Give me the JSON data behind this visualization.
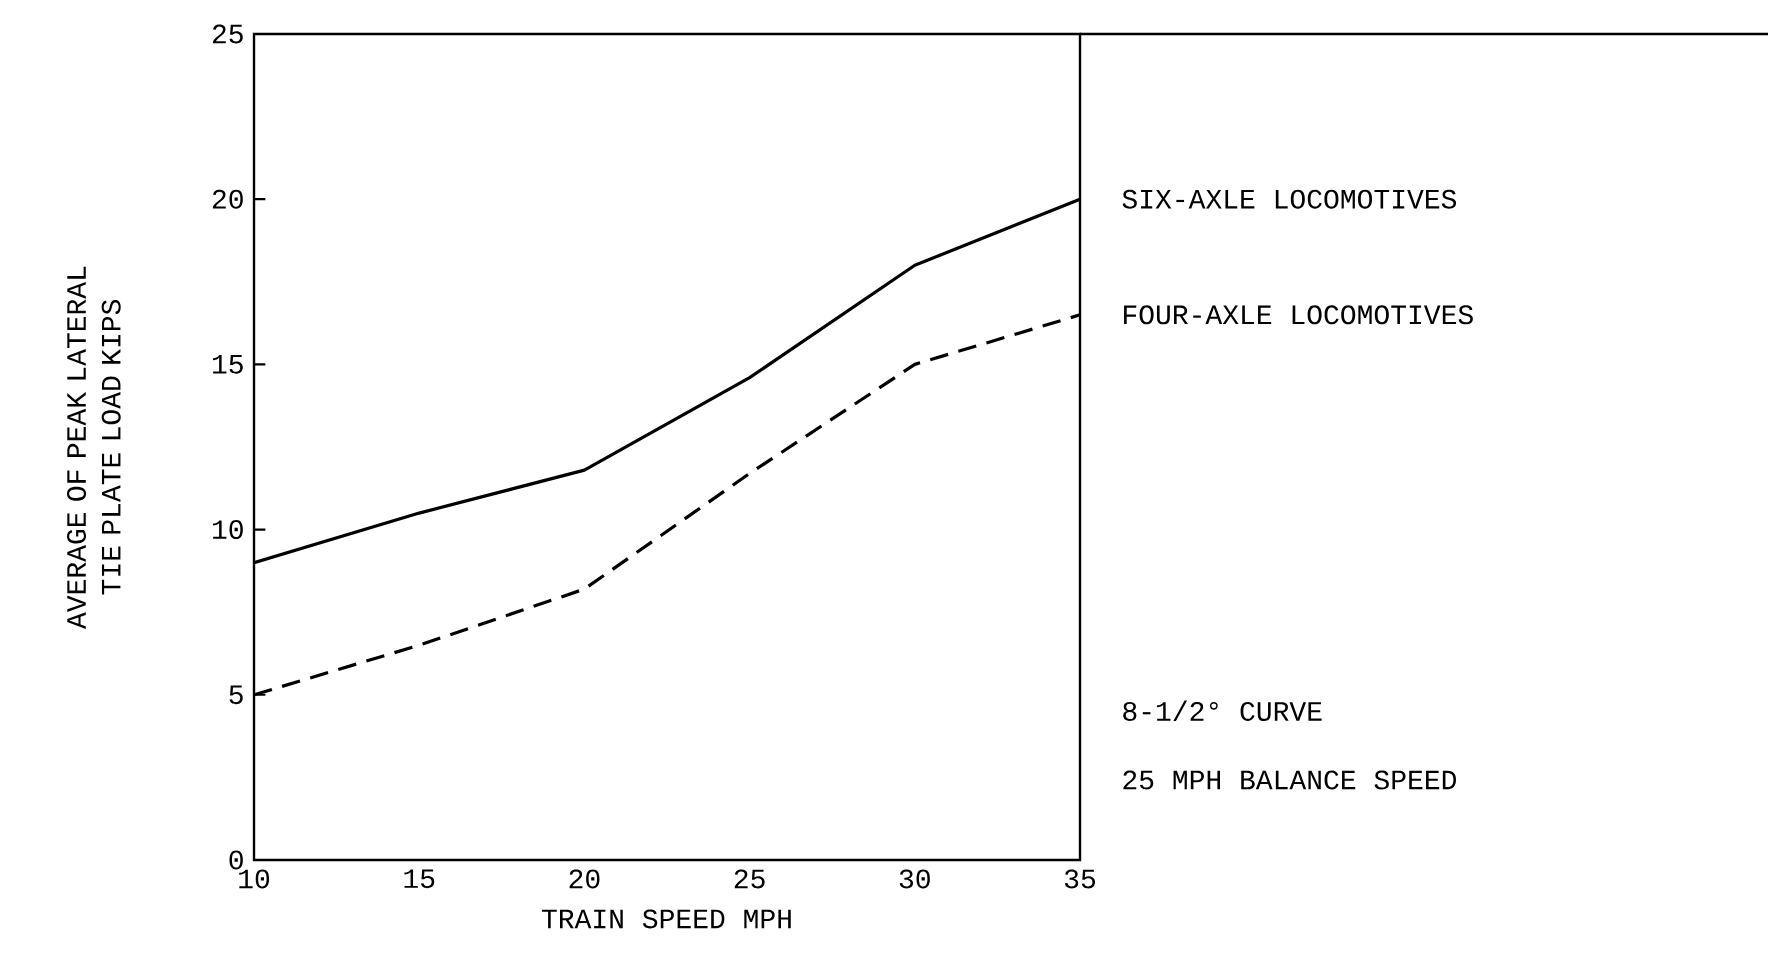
{
  "chart_data": {
    "type": "line",
    "xlabel": "TRAIN SPEED MPH",
    "ylabel": "AVERAGE OF PEAK LATERAL TIE PLATE LOAD KIPS",
    "x": [
      10,
      15,
      20,
      25,
      30,
      35
    ],
    "series": [
      {
        "name": "SIX-AXLE LOCOMOTIVES",
        "color": "#000000",
        "line_style": "solid",
        "values": [
          9,
          10.5,
          11.8,
          14.6,
          18,
          20
        ]
      },
      {
        "name": "FOUR-AXLE LOCOMOTIVES",
        "color": "#000000",
        "line_style": "dashed",
        "values": [
          5,
          6.5,
          8.2,
          11.7,
          15,
          16.5
        ]
      }
    ],
    "annotations": [
      "8-1/2° CURVE",
      "25 MPH BALANCE SPEED"
    ],
    "xlim": [
      10,
      35
    ],
    "ylim": [
      0,
      25
    ],
    "xticks": [
      10,
      15,
      20,
      25,
      30,
      35
    ],
    "yticks": [
      0,
      5,
      10,
      15,
      20,
      25
    ],
    "grid": false,
    "legend": "right",
    "marker": "none"
  }
}
